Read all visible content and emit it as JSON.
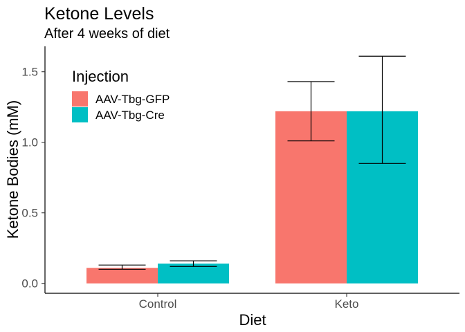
{
  "chart_data": {
    "type": "bar",
    "title": "Ketone Levels",
    "subtitle": "After 4 weeks of diet",
    "xlabel": "Diet",
    "ylabel": "Ketone Bodies (mM)",
    "categories": [
      "Control",
      "Keto"
    ],
    "ylim": [
      -0.07,
      1.68
    ],
    "yticks": [
      0.0,
      0.5,
      1.0,
      1.5
    ],
    "ytick_labels": [
      "0.0",
      "0.5",
      "1.0",
      "1.5"
    ],
    "grid": false,
    "legend": {
      "title": "Injection",
      "placement": "top-left"
    },
    "series": [
      {
        "name": "AAV-Tbg-GFP",
        "color": "#F8766D",
        "values": [
          0.11,
          1.22
        ],
        "error_low": [
          0.1,
          1.01
        ],
        "error_high": [
          0.13,
          1.43
        ]
      },
      {
        "name": "AAV-Tbg-Cre",
        "color": "#00BFC4",
        "values": [
          0.14,
          1.22
        ],
        "error_low": [
          0.12,
          0.85
        ],
        "error_high": [
          0.16,
          1.61
        ]
      }
    ]
  }
}
